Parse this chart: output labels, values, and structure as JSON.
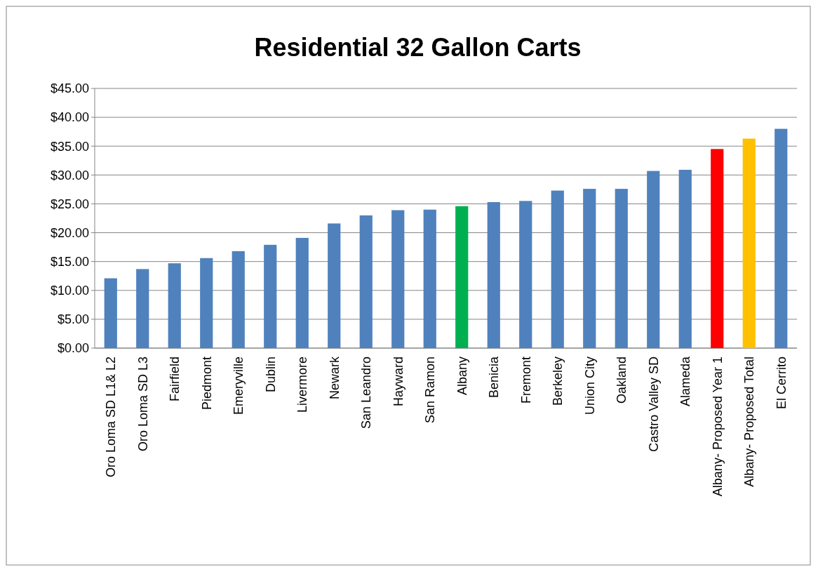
{
  "chart_data": {
    "type": "bar",
    "title": "Residential 32 Gallon Carts",
    "categories": [
      "Oro Loma SD L1& L2",
      "Oro Loma SD L3",
      "Fairfield",
      "Piedmont",
      "Emeryville",
      "Dublin",
      "Livermore",
      "Newark",
      "San Leandro",
      "Hayward",
      "San Ramon",
      "Albany",
      "Benicia",
      "Fremont",
      "Berkeley",
      "Union City",
      "Oakland",
      "Castro Valley SD",
      "Alameda",
      "Albany- Proposed Year 1",
      "Albany- Proposed Total",
      "El Cerrito"
    ],
    "values": [
      12.1,
      13.7,
      14.7,
      15.6,
      16.8,
      17.9,
      19.1,
      21.6,
      23.0,
      23.9,
      24.0,
      24.6,
      25.3,
      25.5,
      27.3,
      27.6,
      27.6,
      30.7,
      30.9,
      34.5,
      36.3,
      38.0
    ],
    "colors": [
      "#4f81bd",
      "#4f81bd",
      "#4f81bd",
      "#4f81bd",
      "#4f81bd",
      "#4f81bd",
      "#4f81bd",
      "#4f81bd",
      "#4f81bd",
      "#4f81bd",
      "#4f81bd",
      "#00b050",
      "#4f81bd",
      "#4f81bd",
      "#4f81bd",
      "#4f81bd",
      "#4f81bd",
      "#4f81bd",
      "#4f81bd",
      "#ff0000",
      "#ffc000",
      "#4f81bd"
    ],
    "ylim": [
      0,
      45
    ],
    "yticks": [
      {
        "value": 0,
        "label": "$0.00"
      },
      {
        "value": 5,
        "label": "$5.00"
      },
      {
        "value": 10,
        "label": "$10.00"
      },
      {
        "value": 15,
        "label": "$15.00"
      },
      {
        "value": 20,
        "label": "$20.00"
      },
      {
        "value": 25,
        "label": "$25.00"
      },
      {
        "value": 30,
        "label": "$30.00"
      },
      {
        "value": 35,
        "label": "$35.00"
      },
      {
        "value": 40,
        "label": "$40.00"
      },
      {
        "value": 45,
        "label": "$45.00"
      }
    ],
    "grid": "y"
  }
}
